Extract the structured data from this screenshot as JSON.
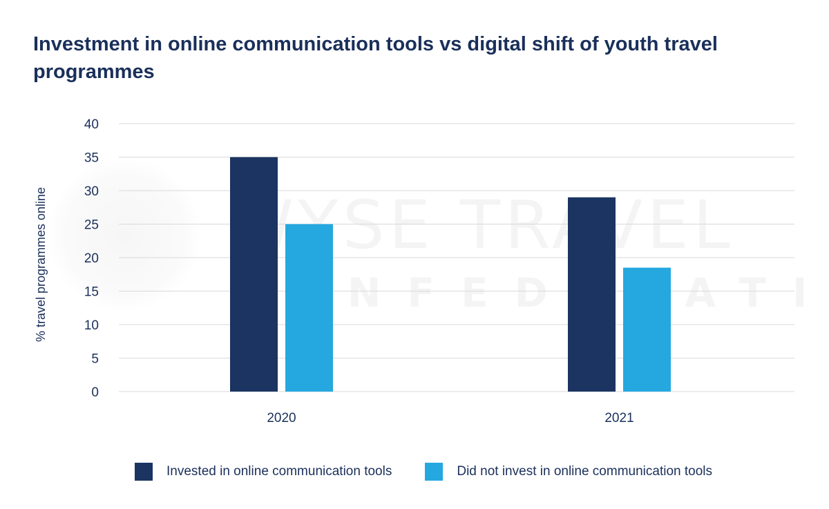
{
  "title": "Investment in online communication tools vs digital shift of youth travel programmes",
  "watermark": {
    "line1": "WYSE TRAVEL",
    "line2": "CONFEDERATION"
  },
  "colors": {
    "series_1": "#1b3461",
    "series_2": "#25a8e0",
    "grid": "#d9d9d9",
    "text": "#1a2f5a"
  },
  "chart_data": {
    "type": "bar",
    "categories": [
      "2020",
      "2021"
    ],
    "series": [
      {
        "name": "Invested in online communication tools",
        "values": [
          35,
          29
        ]
      },
      {
        "name": "Did not invest in online communication tools",
        "values": [
          25,
          18.5
        ]
      }
    ],
    "ylabel": "% travel programmes online",
    "ylim": [
      0,
      40
    ],
    "yticks": [
      0,
      5,
      10,
      15,
      20,
      25,
      30,
      35,
      40
    ],
    "grid": true,
    "legend_position": "bottom"
  }
}
